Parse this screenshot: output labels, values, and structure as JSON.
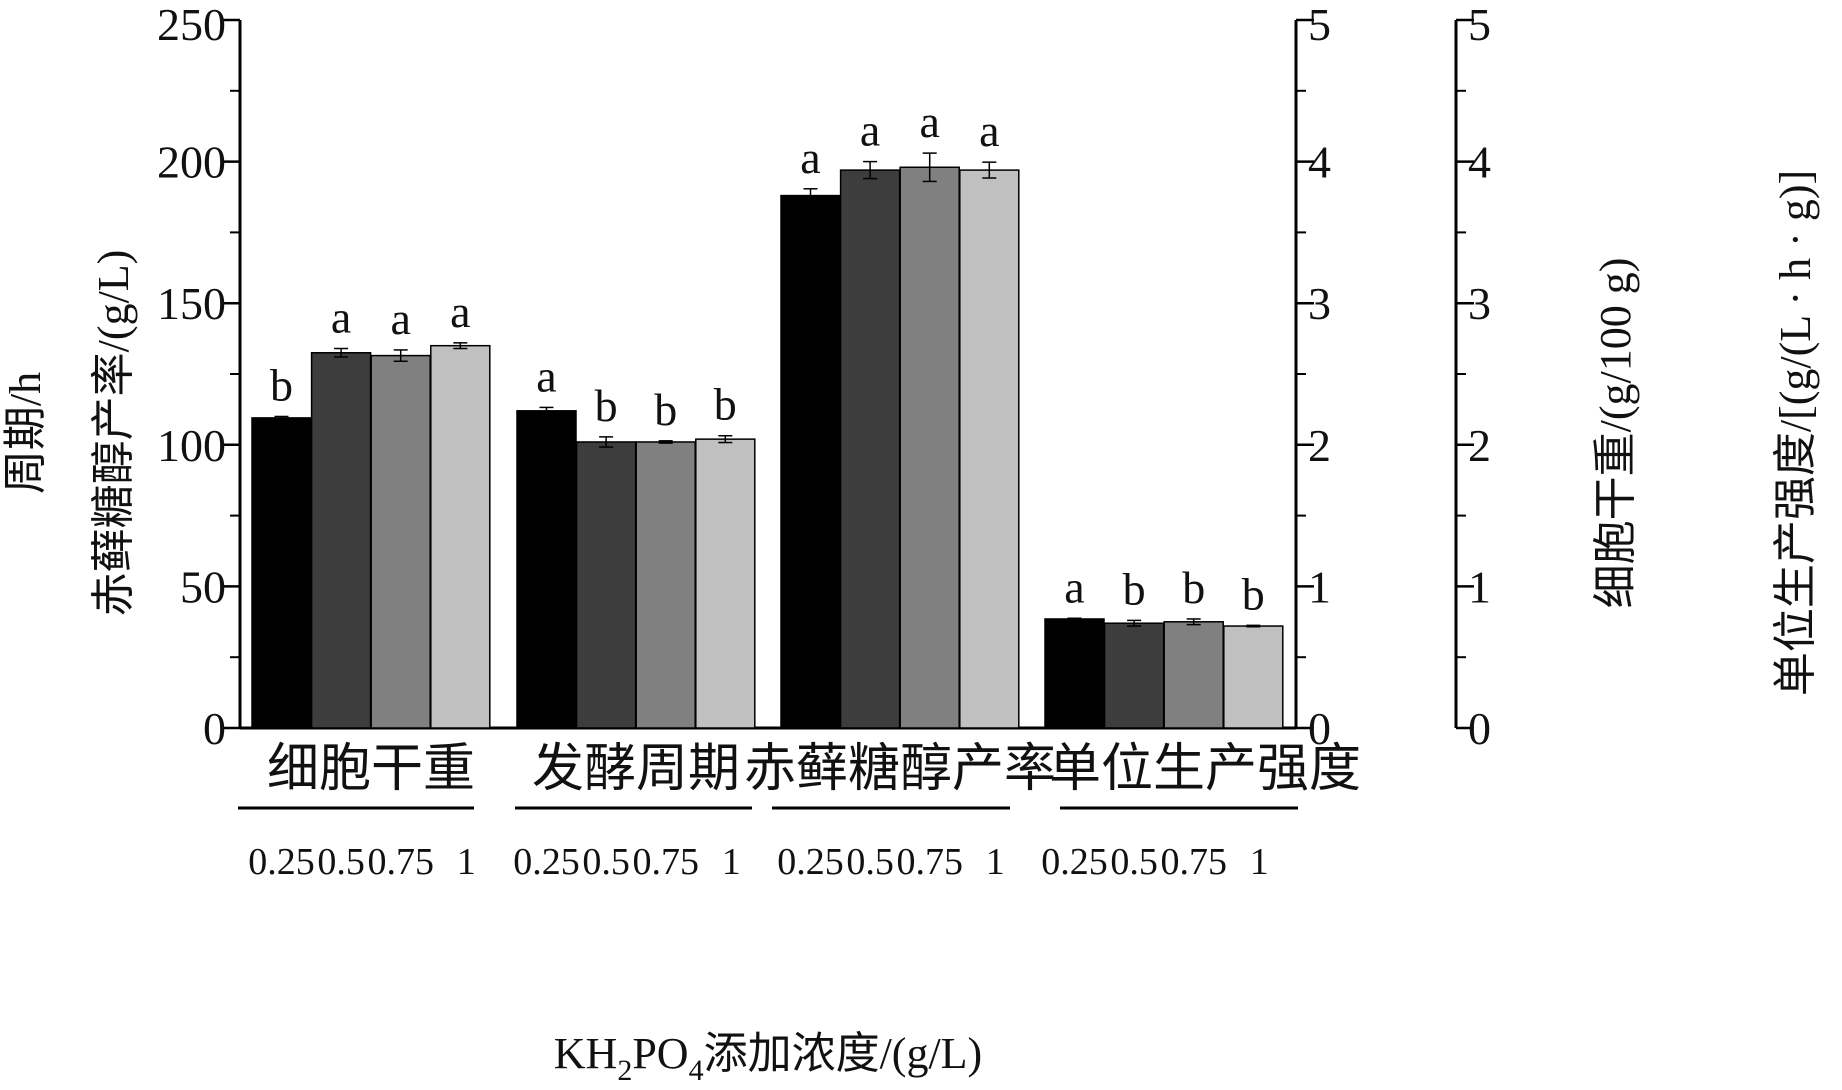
{
  "chart_data": {
    "type": "bar",
    "categories": [
      "细胞干重",
      "发酵周期",
      "赤藓糖醇产率",
      "单位生产强度"
    ],
    "series": [
      {
        "name": "0.25",
        "color": "#000000",
        "values": [
          2.19,
          112,
          188,
          0.77
        ],
        "errors": [
          0.01,
          1.2,
          2.4,
          0.005
        ],
        "sig": [
          "b",
          "a",
          "a",
          "a"
        ]
      },
      {
        "name": "0.5",
        "color": "#3d3d3d",
        "values": [
          2.65,
          101,
          197,
          0.74
        ],
        "errors": [
          0.03,
          1.8,
          3.0,
          0.02
        ],
        "sig": [
          "a",
          "b",
          "a",
          "b"
        ]
      },
      {
        "name": "0.75",
        "color": "#808080",
        "values": [
          2.63,
          101,
          198,
          0.75
        ],
        "errors": [
          0.04,
          0.4,
          5.0,
          0.02
        ],
        "sig": [
          "a",
          "b",
          "a",
          "b"
        ]
      },
      {
        "name": "1",
        "color": "#c0c0c0",
        "values": [
          2.7,
          102,
          197,
          0.72
        ],
        "errors": [
          0.02,
          1.2,
          2.8,
          0.005
        ],
        "sig": [
          "a",
          "b",
          "a",
          "b"
        ]
      }
    ],
    "axis_of_category": [
      "right1",
      "left",
      "left",
      "right2"
    ],
    "sub_tick_labels": [
      "0.25",
      "0.5",
      "0.75",
      "1"
    ],
    "xlabel_parts": [
      "KH",
      "2",
      "PO",
      "4",
      "添加浓度/(g/L)"
    ],
    "y_left": {
      "label_line1": "周期/h",
      "label_line2": "赤藓糖醇产率/(g/L)",
      "ylim": [
        0,
        250
      ],
      "ticks": [
        "0",
        "50",
        "100",
        "150",
        "200",
        "250"
      ]
    },
    "y_right1": {
      "label": "细胞干重/(g/100 g)",
      "ylim": [
        0,
        5
      ],
      "ticks": [
        "0",
        "1",
        "2",
        "3",
        "4",
        "5"
      ]
    },
    "y_right2": {
      "label": "单位生产强度/[(g/(L · h · g)]",
      "ylim": [
        0,
        5
      ],
      "ticks": [
        "0",
        "1",
        "2",
        "3",
        "4",
        "5"
      ]
    },
    "grid": false,
    "legend": "none"
  }
}
